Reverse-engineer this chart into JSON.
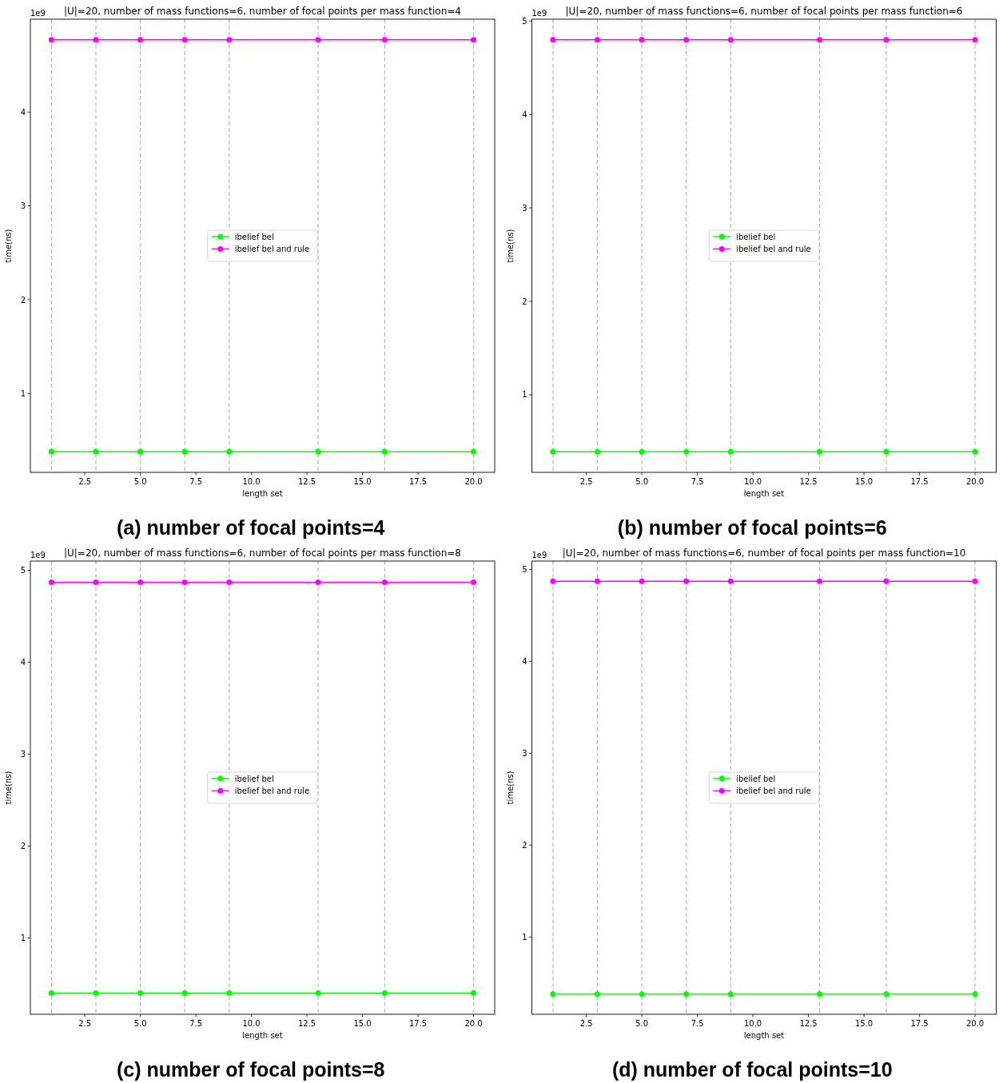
{
  "chart_data": [
    {
      "type": "line",
      "title": "|U|=20, number of mass functions=6, number of focal points per mass function=4",
      "xlabel": "length set",
      "ylabel": "time(ns)",
      "x": [
        1,
        3,
        5,
        7,
        9,
        13,
        16,
        20
      ],
      "series": [
        {
          "name": "ibelief bel",
          "color": "#00ff00",
          "values": [
            0.38,
            0.38,
            0.38,
            0.38,
            0.38,
            0.38,
            0.38,
            0.38
          ]
        },
        {
          "name": "ibelief bel and rule",
          "color": "#ff00ff",
          "values": [
            4.77,
            4.77,
            4.77,
            4.77,
            4.77,
            4.77,
            4.77,
            4.77
          ]
        }
      ],
      "xlim": [
        0.05,
        20.95
      ],
      "xticks": [
        2.5,
        {
          "value": 5,
          "label": "5.0"
        },
        7.5,
        {
          "value": 10,
          "label": "10.0"
        },
        12.5,
        {
          "value": 15,
          "label": "15.0"
        },
        17.5,
        {
          "value": 20,
          "label": "20.0"
        }
      ],
      "ylim": [
        0.16,
        4.99
      ],
      "yticks": [
        1,
        2,
        3,
        4
      ],
      "ref_lines": [
        {
          "axis": "x",
          "value": 1,
          "color": "#b8b8b8",
          "line_style": "dashed"
        },
        {
          "axis": "x",
          "value": 3,
          "color": "#b8b8b8",
          "line_style": "dashed"
        },
        {
          "axis": "x",
          "value": 5,
          "color": "#b8b8b8",
          "line_style": "dashed"
        },
        {
          "axis": "x",
          "value": 7,
          "color": "#b8b8b8",
          "line_style": "dashed"
        },
        {
          "axis": "x",
          "value": 9,
          "color": "#b8b8b8",
          "line_style": "dashed"
        },
        {
          "axis": "x",
          "value": 13,
          "color": "#b8b8b8",
          "line_style": "dashed"
        },
        {
          "axis": "x",
          "value": 16,
          "color": "#b8b8b8",
          "line_style": "dashed"
        },
        {
          "axis": "x",
          "value": 20,
          "color": "#b8b8b8",
          "line_style": "dashed"
        }
      ],
      "legend": "center",
      "marker": "circle",
      "annotations": [
        "1e9",
        "(a) number of focal points=4"
      ]
    },
    {
      "type": "line",
      "title": "|U|=20, number of mass functions=6, number of focal points per mass function=6",
      "xlabel": "length set",
      "ylabel": "time(ns)",
      "x": [
        1,
        3,
        5,
        7,
        9,
        13,
        16,
        20
      ],
      "series": [
        {
          "name": "ibelief bel",
          "color": "#00ff00",
          "values": [
            0.39,
            0.39,
            0.39,
            0.39,
            0.39,
            0.39,
            0.39,
            0.39
          ]
        },
        {
          "name": "ibelief bel and rule",
          "color": "#ff00ff",
          "values": [
            4.8,
            4.8,
            4.8,
            4.8,
            4.8,
            4.8,
            4.8,
            4.8
          ]
        }
      ],
      "xlim": [
        0.05,
        20.95
      ],
      "xticks": [
        2.5,
        {
          "value": 5,
          "label": "5.0"
        },
        7.5,
        {
          "value": 10,
          "label": "10.0"
        },
        12.5,
        {
          "value": 15,
          "label": "15.0"
        },
        17.5,
        {
          "value": 20,
          "label": "20.0"
        }
      ],
      "ylim": [
        0.17,
        5.02
      ],
      "yticks": [
        1,
        2,
        3,
        4,
        5
      ],
      "ref_lines": [
        {
          "axis": "x",
          "value": 1,
          "color": "#b8b8b8",
          "line_style": "dashed"
        },
        {
          "axis": "x",
          "value": 3,
          "color": "#b8b8b8",
          "line_style": "dashed"
        },
        {
          "axis": "x",
          "value": 5,
          "color": "#b8b8b8",
          "line_style": "dashed"
        },
        {
          "axis": "x",
          "value": 7,
          "color": "#b8b8b8",
          "line_style": "dashed"
        },
        {
          "axis": "x",
          "value": 9,
          "color": "#b8b8b8",
          "line_style": "dashed"
        },
        {
          "axis": "x",
          "value": 13,
          "color": "#b8b8b8",
          "line_style": "dashed"
        },
        {
          "axis": "x",
          "value": 16,
          "color": "#b8b8b8",
          "line_style": "dashed"
        },
        {
          "axis": "x",
          "value": 20,
          "color": "#b8b8b8",
          "line_style": "dashed"
        }
      ],
      "legend": "center",
      "marker": "circle",
      "annotations": [
        "1e9",
        "(b) number of focal points=6"
      ]
    },
    {
      "type": "line",
      "title": "|U|=20, number of mass functions=6, number of focal points per mass function=8",
      "xlabel": "length set",
      "ylabel": "time(ns)",
      "x": [
        1,
        3,
        5,
        7,
        9,
        13,
        16,
        20
      ],
      "series": [
        {
          "name": "ibelief bel",
          "color": "#00ff00",
          "values": [
            0.4,
            0.4,
            0.4,
            0.4,
            0.4,
            0.4,
            0.4,
            0.4
          ]
        },
        {
          "name": "ibelief bel and rule",
          "color": "#ff00ff",
          "values": [
            4.87,
            4.87,
            4.87,
            4.87,
            4.87,
            4.87,
            4.87,
            4.87
          ]
        }
      ],
      "xlim": [
        0.05,
        20.95
      ],
      "xticks": [
        2.5,
        {
          "value": 5,
          "label": "5.0"
        },
        7.5,
        {
          "value": 10,
          "label": "10.0"
        },
        12.5,
        {
          "value": 15,
          "label": "15.0"
        },
        17.5,
        {
          "value": 20,
          "label": "20.0"
        }
      ],
      "ylim": [
        0.17,
        5.1
      ],
      "yticks": [
        1,
        2,
        3,
        4,
        5
      ],
      "ref_lines": [
        {
          "axis": "x",
          "value": 1,
          "color": "#b8b8b8",
          "line_style": "dashed"
        },
        {
          "axis": "x",
          "value": 3,
          "color": "#b8b8b8",
          "line_style": "dashed"
        },
        {
          "axis": "x",
          "value": 5,
          "color": "#b8b8b8",
          "line_style": "dashed"
        },
        {
          "axis": "x",
          "value": 7,
          "color": "#b8b8b8",
          "line_style": "dashed"
        },
        {
          "axis": "x",
          "value": 9,
          "color": "#b8b8b8",
          "line_style": "dashed"
        },
        {
          "axis": "x",
          "value": 13,
          "color": "#b8b8b8",
          "line_style": "dashed"
        },
        {
          "axis": "x",
          "value": 16,
          "color": "#b8b8b8",
          "line_style": "dashed"
        },
        {
          "axis": "x",
          "value": 20,
          "color": "#b8b8b8",
          "line_style": "dashed"
        }
      ],
      "legend": "center",
      "marker": "circle",
      "annotations": [
        "1e9",
        "(c) number of focal points=8"
      ]
    },
    {
      "type": "line",
      "title": "|U|=20, number of mass functions=6, number of focal points per mass function=10",
      "xlabel": "length set",
      "ylabel": "time(ns)",
      "x": [
        1,
        3,
        5,
        7,
        9,
        13,
        16,
        20
      ],
      "series": [
        {
          "name": "ibelief bel",
          "color": "#00ff00",
          "values": [
            0.38,
            0.38,
            0.38,
            0.38,
            0.38,
            0.38,
            0.38,
            0.38
          ]
        },
        {
          "name": "ibelief bel and rule",
          "color": "#ff00ff",
          "values": [
            4.87,
            4.87,
            4.87,
            4.87,
            4.87,
            4.87,
            4.87,
            4.87
          ]
        }
      ],
      "xlim": [
        0.05,
        20.95
      ],
      "xticks": [
        2.5,
        {
          "value": 5,
          "label": "5.0"
        },
        7.5,
        {
          "value": 10,
          "label": "10.0"
        },
        12.5,
        {
          "value": 15,
          "label": "15.0"
        },
        17.5,
        {
          "value": 20,
          "label": "20.0"
        }
      ],
      "ylim": [
        0.16,
        5.09
      ],
      "yticks": [
        1,
        2,
        3,
        4,
        5
      ],
      "ref_lines": [
        {
          "axis": "x",
          "value": 1,
          "color": "#b8b8b8",
          "line_style": "dashed"
        },
        {
          "axis": "x",
          "value": 3,
          "color": "#b8b8b8",
          "line_style": "dashed"
        },
        {
          "axis": "x",
          "value": 5,
          "color": "#b8b8b8",
          "line_style": "dashed"
        },
        {
          "axis": "x",
          "value": 7,
          "color": "#b8b8b8",
          "line_style": "dashed"
        },
        {
          "axis": "x",
          "value": 9,
          "color": "#b8b8b8",
          "line_style": "dashed"
        },
        {
          "axis": "x",
          "value": 13,
          "color": "#b8b8b8",
          "line_style": "dashed"
        },
        {
          "axis": "x",
          "value": 16,
          "color": "#b8b8b8",
          "line_style": "dashed"
        },
        {
          "axis": "x",
          "value": 20,
          "color": "#b8b8b8",
          "line_style": "dashed"
        }
      ],
      "legend": "center",
      "marker": "circle",
      "annotations": [
        "1e9",
        "(d) number of focal points=10"
      ]
    }
  ]
}
